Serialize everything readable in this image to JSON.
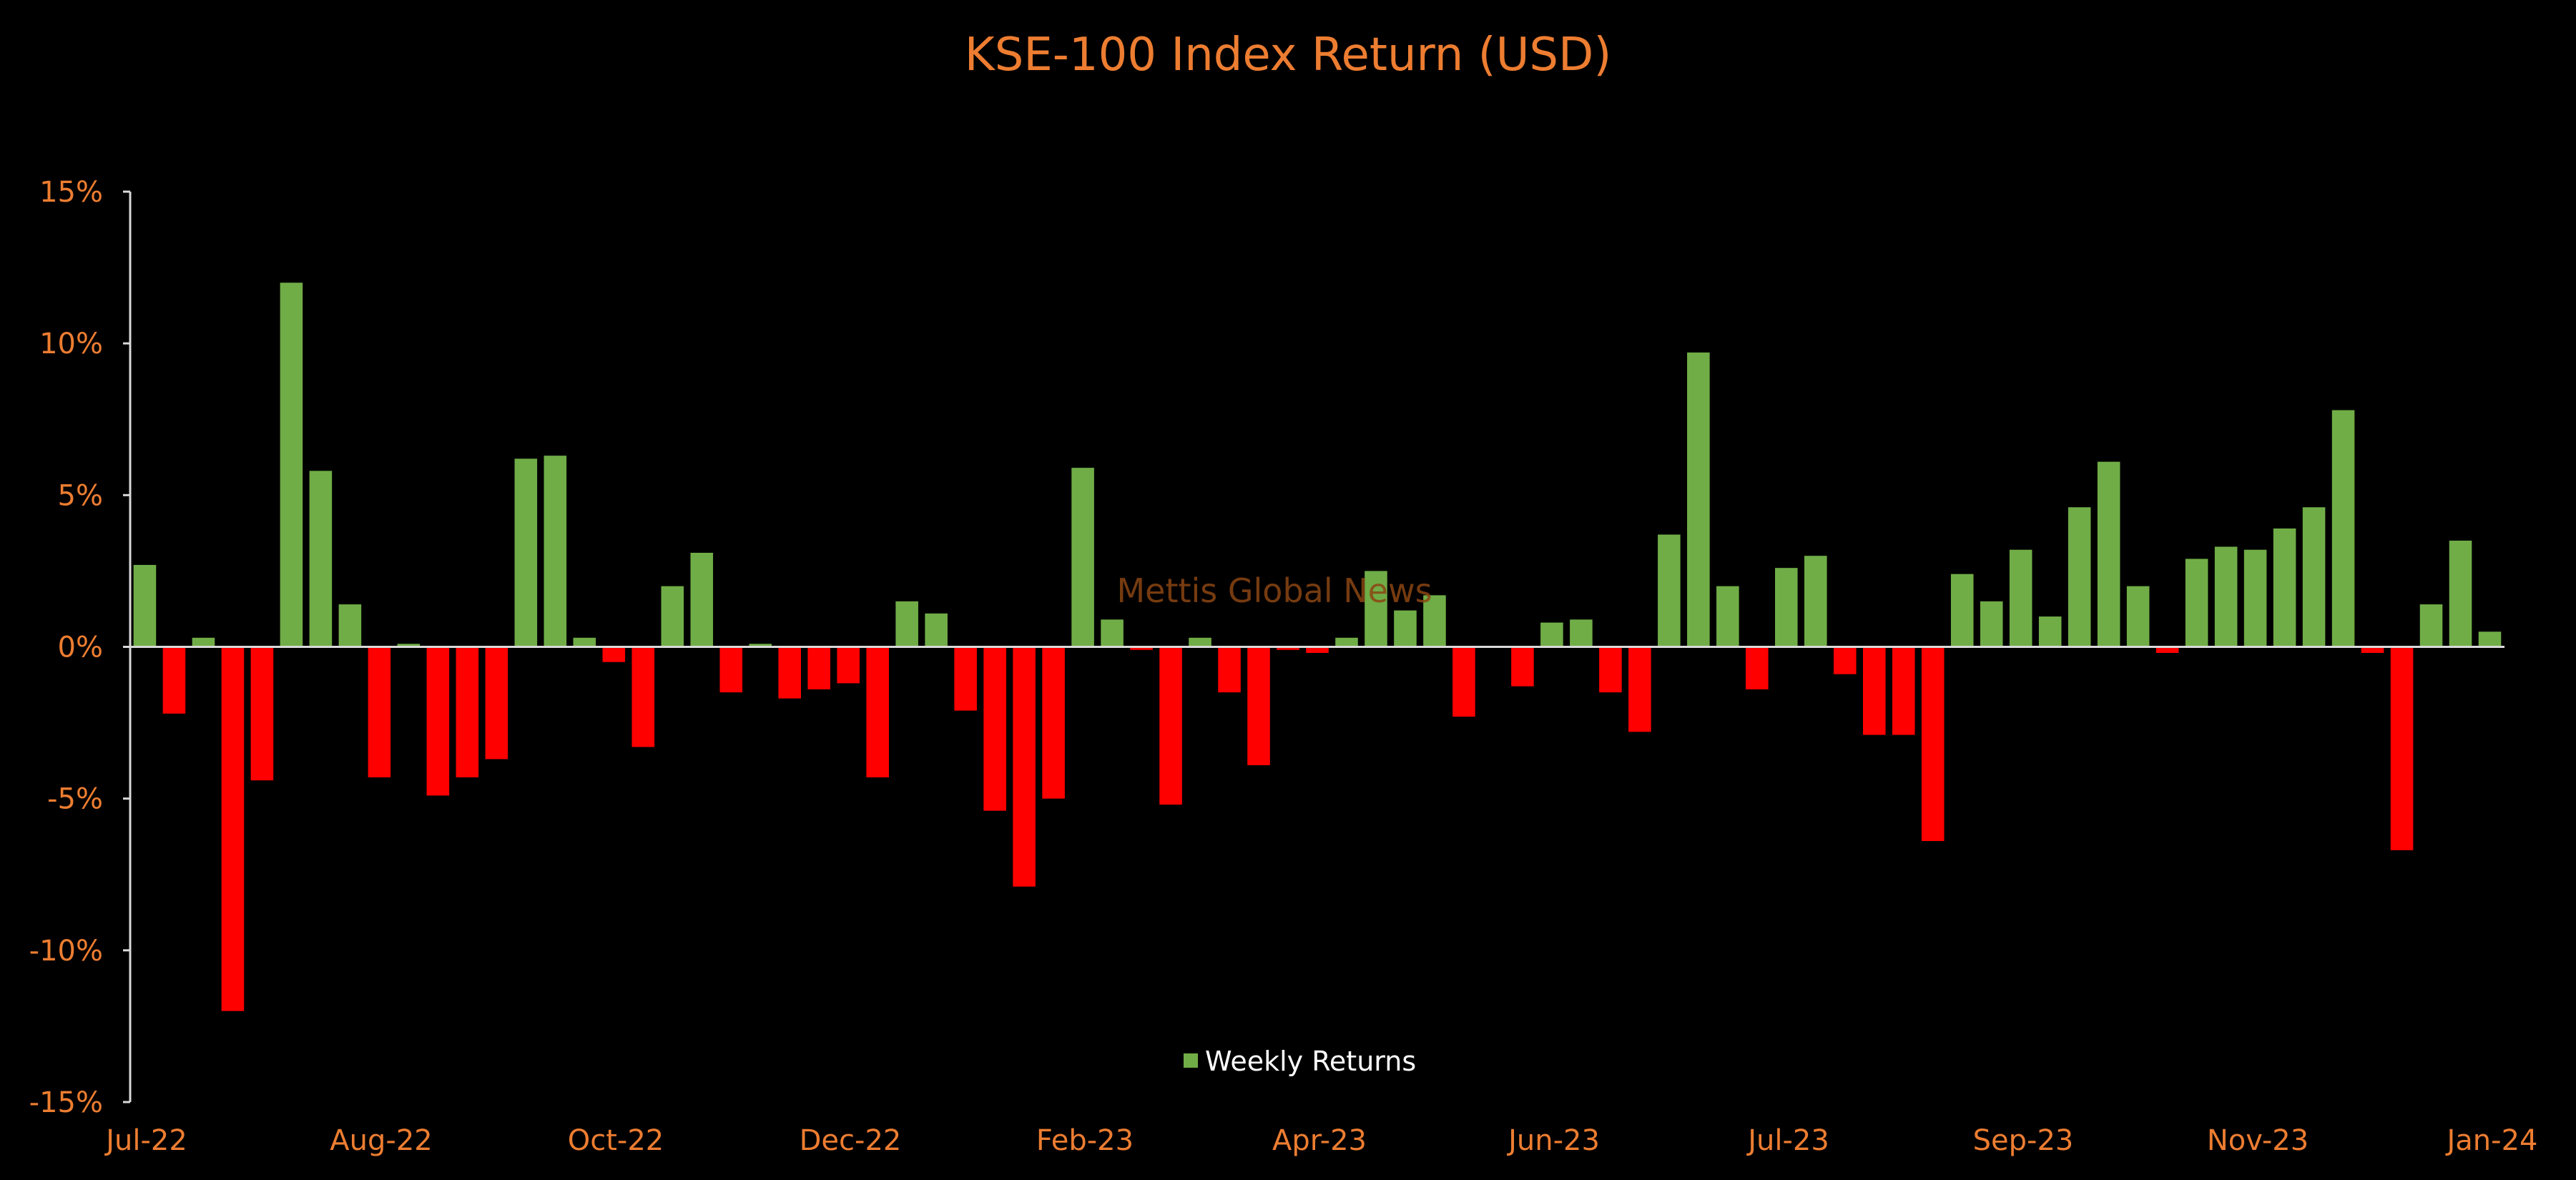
{
  "chart_data": {
    "type": "bar",
    "title": "KSE-100 Index Return (USD)",
    "watermark": "Mettis Global News",
    "xlabel": "",
    "ylabel": "",
    "ylim": [
      -15,
      15
    ],
    "yticks": [
      15,
      10,
      5,
      0,
      -5,
      -10,
      -15
    ],
    "ytick_labels": [
      "15%",
      "10%",
      "5%",
      "0%",
      "-5%",
      "-10%",
      "-15%"
    ],
    "xtick_labels": [
      "Jul-22",
      "Aug-22",
      "Oct-22",
      "Dec-22",
      "Feb-23",
      "Apr-23",
      "Jun-23",
      "Jul-23",
      "Sep-23",
      "Nov-23",
      "Jan-24"
    ],
    "grid": false,
    "legend": {
      "position": "bottom-center"
    },
    "series": [
      {
        "name": "Weekly Returns",
        "values": [
          2.7,
          -2.2,
          0.3,
          -12.0,
          -4.4,
          12.0,
          5.8,
          1.4,
          -4.3,
          0.1,
          -4.9,
          -4.3,
          -3.7,
          6.2,
          6.3,
          0.3,
          -0.5,
          -3.3,
          2.0,
          3.1,
          -1.5,
          0.1,
          -1.7,
          -1.4,
          -1.2,
          -4.3,
          1.5,
          1.1,
          -2.1,
          -5.4,
          -7.9,
          -5.0,
          5.9,
          0.9,
          -0.1,
          -5.2,
          0.3,
          -1.5,
          -3.9,
          -0.1,
          -0.2,
          0.3,
          2.5,
          1.2,
          1.7,
          -2.3,
          0.0,
          -1.3,
          0.8,
          0.9,
          -1.5,
          -2.8,
          3.7,
          9.7,
          2.0,
          -1.4,
          2.6,
          3.0,
          -0.9,
          -2.9,
          -2.9,
          -6.4,
          2.4,
          1.5,
          3.2,
          1.0,
          4.6,
          6.1,
          2.0,
          -0.2,
          2.9,
          3.3,
          3.2,
          3.9,
          4.6,
          7.8,
          -0.2,
          -6.7,
          1.4,
          3.5,
          0.5
        ],
        "positive_color": "#70AD47",
        "negative_color": "#FF0000"
      }
    ]
  },
  "colors": {
    "background": "#000000",
    "title": "#ED7D31",
    "ticks": "#ED7D31",
    "axis": "#D9D9D9",
    "legend_text": "#FFFFFF",
    "watermark": "#8B4513"
  }
}
